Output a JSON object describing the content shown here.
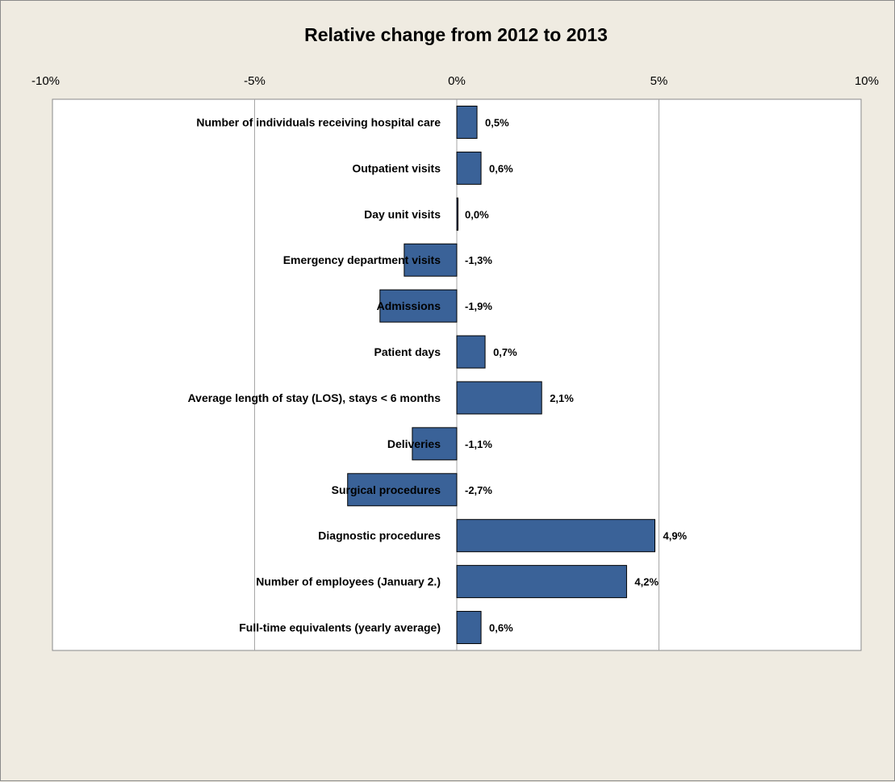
{
  "chart_data": {
    "type": "bar",
    "orientation": "horizontal",
    "title": "Relative change from 2012 to 2013",
    "xlim": [
      -10,
      10
    ],
    "x_ticks": [
      -10,
      -5,
      0,
      5,
      10
    ],
    "x_tick_labels": [
      "-10%",
      "-5%",
      "0%",
      "5%",
      "10%"
    ],
    "x_axis_position": "top",
    "grid": true,
    "categories": [
      "Number of individuals  receiving hospital care",
      "Outpatient visits",
      "Day unit visits",
      "Emergency department visits",
      "Admissions",
      "Patient days",
      "Average length of stay (LOS), stays < 6 months",
      "Deliveries",
      "Surgical procedures",
      "Diagnostic procedures",
      "Number of employees (January  2.)",
      "Full-time equivalents  (yearly average)"
    ],
    "values": [
      0.5,
      0.6,
      0.0,
      -1.3,
      -1.9,
      0.7,
      2.1,
      -1.1,
      -2.7,
      4.9,
      4.2,
      0.6
    ],
    "data_labels": [
      "0,5%",
      "0,6%",
      "0,0%",
      "-1,3%",
      "-1,9%",
      "0,7%",
      "2,1%",
      "-1,1%",
      "-2,7%",
      "4,9%",
      "4,2%",
      "0,6%"
    ],
    "bar_color": "#3a6298",
    "background_color": "#efebe1",
    "plot_background_color": "#ffffff"
  }
}
